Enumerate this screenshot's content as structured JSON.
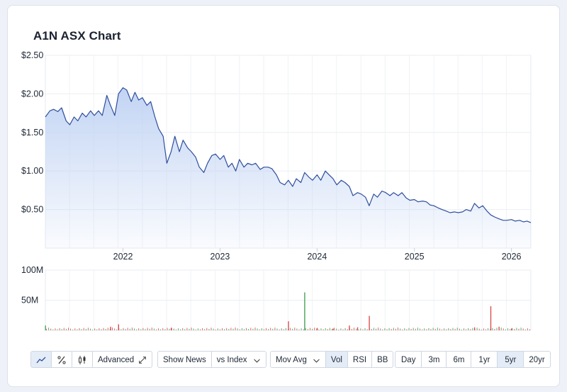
{
  "title": "A1N ASX Chart",
  "toolbar": {
    "chart_modes": [
      {
        "icon": "line-chart-icon",
        "active": true
      },
      {
        "icon": "percent-icon",
        "active": false
      },
      {
        "icon": "candlestick-icon",
        "active": false
      }
    ],
    "advanced_label": "Advanced",
    "show_news_label": "Show News",
    "vs_index_label": "vs Index",
    "mov_avg_label": "Mov Avg",
    "indicators": [
      {
        "label": "Vol",
        "active": true
      },
      {
        "label": "RSI",
        "active": false
      },
      {
        "label": "BB",
        "active": false
      }
    ],
    "ranges": [
      {
        "label": "Day",
        "active": false
      },
      {
        "label": "3m",
        "active": false
      },
      {
        "label": "6m",
        "active": false
      },
      {
        "label": "1yr",
        "active": false
      },
      {
        "label": "5yr",
        "active": true
      },
      {
        "label": "20yr",
        "active": false
      }
    ]
  },
  "colors": {
    "line": "#2f4e9c",
    "fill_top": "#bfd2f3",
    "vol_up": "#3d9a4e",
    "vol_down": "#d64545"
  },
  "chart_data": [
    {
      "type": "area",
      "x_type": "date",
      "price_ylim": [
        0,
        2.5
      ],
      "y_ticks": [
        {
          "label": "$2.50",
          "value": 2.5
        },
        {
          "label": "$2.00",
          "value": 2.0
        },
        {
          "label": "$1.50",
          "value": 1.5
        },
        {
          "label": "$1.00",
          "value": 1.0
        },
        {
          "label": "$0.50",
          "value": 0.5
        }
      ],
      "x_range": [
        "2021-03-15",
        "2026-03-15"
      ],
      "x_ticks": [
        {
          "label": "2022",
          "date": "2022-01-01"
        },
        {
          "label": "2023",
          "date": "2023-01-01"
        },
        {
          "label": "2024",
          "date": "2024-01-01"
        },
        {
          "label": "2025",
          "date": "2025-01-01"
        },
        {
          "label": "2026",
          "date": "2026-01-01"
        }
      ],
      "grid": true,
      "points": [
        [
          "2021-03-15",
          1.7
        ],
        [
          "2021-04-01",
          1.78
        ],
        [
          "2021-04-15",
          1.8
        ],
        [
          "2021-05-01",
          1.77
        ],
        [
          "2021-05-15",
          1.82
        ],
        [
          "2021-06-01",
          1.65
        ],
        [
          "2021-06-15",
          1.6
        ],
        [
          "2021-07-01",
          1.7
        ],
        [
          "2021-07-15",
          1.65
        ],
        [
          "2021-08-01",
          1.75
        ],
        [
          "2021-08-15",
          1.7
        ],
        [
          "2021-09-01",
          1.78
        ],
        [
          "2021-09-15",
          1.72
        ],
        [
          "2021-10-01",
          1.78
        ],
        [
          "2021-10-15",
          1.72
        ],
        [
          "2021-11-01",
          1.98
        ],
        [
          "2021-11-15",
          1.85
        ],
        [
          "2021-12-01",
          1.72
        ],
        [
          "2021-12-15",
          2.0
        ],
        [
          "2022-01-01",
          2.08
        ],
        [
          "2022-01-15",
          2.05
        ],
        [
          "2022-02-01",
          1.9
        ],
        [
          "2022-02-15",
          2.02
        ],
        [
          "2022-03-01",
          1.92
        ],
        [
          "2022-03-15",
          1.95
        ],
        [
          "2022-04-01",
          1.85
        ],
        [
          "2022-04-15",
          1.9
        ],
        [
          "2022-05-01",
          1.7
        ],
        [
          "2022-05-15",
          1.55
        ],
        [
          "2022-06-01",
          1.45
        ],
        [
          "2022-06-15",
          1.1
        ],
        [
          "2022-07-01",
          1.25
        ],
        [
          "2022-07-15",
          1.45
        ],
        [
          "2022-08-01",
          1.25
        ],
        [
          "2022-08-15",
          1.4
        ],
        [
          "2022-09-01",
          1.3
        ],
        [
          "2022-09-15",
          1.25
        ],
        [
          "2022-10-01",
          1.18
        ],
        [
          "2022-10-15",
          1.05
        ],
        [
          "2022-11-01",
          0.98
        ],
        [
          "2022-11-15",
          1.1
        ],
        [
          "2022-12-01",
          1.2
        ],
        [
          "2022-12-15",
          1.22
        ],
        [
          "2023-01-01",
          1.15
        ],
        [
          "2023-01-15",
          1.2
        ],
        [
          "2023-02-01",
          1.05
        ],
        [
          "2023-02-15",
          1.1
        ],
        [
          "2023-03-01",
          1.0
        ],
        [
          "2023-03-15",
          1.15
        ],
        [
          "2023-04-01",
          1.05
        ],
        [
          "2023-04-15",
          1.1
        ],
        [
          "2023-05-01",
          1.08
        ],
        [
          "2023-05-15",
          1.1
        ],
        [
          "2023-06-01",
          1.02
        ],
        [
          "2023-06-15",
          1.05
        ],
        [
          "2023-07-01",
          1.05
        ],
        [
          "2023-07-15",
          1.03
        ],
        [
          "2023-08-01",
          0.95
        ],
        [
          "2023-08-15",
          0.85
        ],
        [
          "2023-09-01",
          0.82
        ],
        [
          "2023-09-15",
          0.88
        ],
        [
          "2023-10-01",
          0.8
        ],
        [
          "2023-10-15",
          0.9
        ],
        [
          "2023-11-01",
          0.85
        ],
        [
          "2023-11-15",
          0.98
        ],
        [
          "2023-12-01",
          0.92
        ],
        [
          "2023-12-15",
          0.88
        ],
        [
          "2024-01-01",
          0.95
        ],
        [
          "2024-01-15",
          0.88
        ],
        [
          "2024-02-01",
          1.0
        ],
        [
          "2024-02-15",
          0.95
        ],
        [
          "2024-03-01",
          0.9
        ],
        [
          "2024-03-15",
          0.82
        ],
        [
          "2024-04-01",
          0.88
        ],
        [
          "2024-04-15",
          0.85
        ],
        [
          "2024-05-01",
          0.8
        ],
        [
          "2024-05-15",
          0.68
        ],
        [
          "2024-06-01",
          0.72
        ],
        [
          "2024-06-15",
          0.7
        ],
        [
          "2024-07-01",
          0.66
        ],
        [
          "2024-07-15",
          0.55
        ],
        [
          "2024-08-01",
          0.7
        ],
        [
          "2024-08-15",
          0.66
        ],
        [
          "2024-09-01",
          0.74
        ],
        [
          "2024-09-15",
          0.72
        ],
        [
          "2024-10-01",
          0.68
        ],
        [
          "2024-10-15",
          0.72
        ],
        [
          "2024-11-01",
          0.68
        ],
        [
          "2024-11-15",
          0.72
        ],
        [
          "2024-12-01",
          0.65
        ],
        [
          "2024-12-15",
          0.62
        ],
        [
          "2025-01-01",
          0.63
        ],
        [
          "2025-01-15",
          0.6
        ],
        [
          "2025-02-01",
          0.61
        ],
        [
          "2025-02-15",
          0.6
        ],
        [
          "2025-03-01",
          0.56
        ],
        [
          "2025-03-15",
          0.55
        ],
        [
          "2025-04-01",
          0.52
        ],
        [
          "2025-04-15",
          0.5
        ],
        [
          "2025-05-01",
          0.48
        ],
        [
          "2025-05-15",
          0.46
        ],
        [
          "2025-06-01",
          0.47
        ],
        [
          "2025-06-15",
          0.46
        ],
        [
          "2025-07-01",
          0.47
        ],
        [
          "2025-07-15",
          0.5
        ],
        [
          "2025-08-01",
          0.48
        ],
        [
          "2025-08-15",
          0.58
        ],
        [
          "2025-09-01",
          0.52
        ],
        [
          "2025-09-15",
          0.55
        ],
        [
          "2025-10-01",
          0.48
        ],
        [
          "2025-10-15",
          0.43
        ],
        [
          "2025-11-01",
          0.4
        ],
        [
          "2025-11-15",
          0.38
        ],
        [
          "2025-12-01",
          0.36
        ],
        [
          "2025-12-15",
          0.36
        ],
        [
          "2026-01-01",
          0.37
        ],
        [
          "2026-01-15",
          0.35
        ],
        [
          "2026-02-01",
          0.36
        ],
        [
          "2026-02-15",
          0.34
        ],
        [
          "2026-03-01",
          0.35
        ],
        [
          "2026-03-15",
          0.33
        ]
      ]
    },
    {
      "type": "bar",
      "name": "Volume",
      "x_type": "date",
      "ylim": [
        0,
        100000000
      ],
      "y_ticks": [
        {
          "label": "100M",
          "value": 100000000
        },
        {
          "label": "50M",
          "value": 50000000
        }
      ],
      "bars": [
        [
          "2021-03-15",
          8000000,
          "up"
        ],
        [
          "2021-11-15",
          6000000,
          "down"
        ],
        [
          "2021-12-15",
          10000000,
          "down"
        ],
        [
          "2022-07-01",
          4000000,
          "down"
        ],
        [
          "2023-09-15",
          15000000,
          "down"
        ],
        [
          "2023-11-15",
          63000000,
          "up"
        ],
        [
          "2024-01-01",
          4000000,
          "down"
        ],
        [
          "2024-03-01",
          3000000,
          "down"
        ],
        [
          "2024-05-01",
          8000000,
          "down"
        ],
        [
          "2024-06-01",
          5000000,
          "down"
        ],
        [
          "2024-07-15",
          24000000,
          "down"
        ],
        [
          "2025-08-15",
          5000000,
          "down"
        ],
        [
          "2025-10-15",
          40000000,
          "down"
        ],
        [
          "2025-11-15",
          6000000,
          "down"
        ],
        [
          "2026-01-01",
          3000000,
          "down"
        ]
      ]
    }
  ]
}
